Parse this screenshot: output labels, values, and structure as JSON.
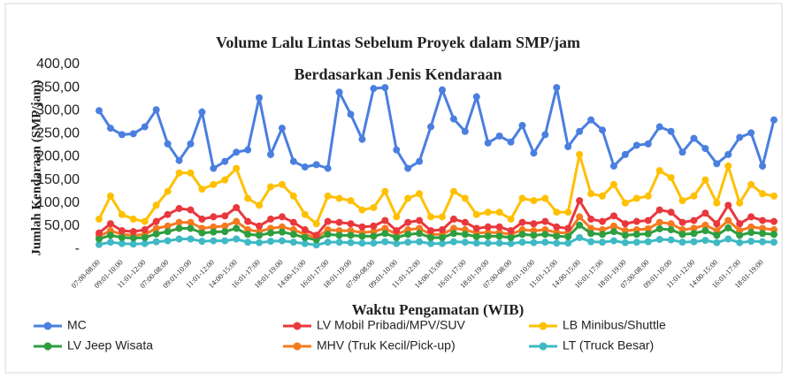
{
  "chart_data": {
    "type": "line",
    "title": "Volume Lalu Lintas Sebelum Proyek dalam SMP/jam",
    "subtitle": "Berdasarkan Jenis Kendaraan",
    "x_label": "Waktu Pengamatan (WIB)",
    "y_label": "Jumlah Kendaraan (SMP/jam)",
    "categories": [
      "07:00-08:00",
      null,
      "09:01-10:00",
      null,
      "11:01-12:00",
      null,
      "07:00-08:00",
      null,
      "09:01-10:00",
      null,
      "11:01-12:00",
      null,
      "14:00-15:00",
      null,
      "16:01-17:00",
      null,
      "18:01-19:00",
      null,
      "14:00-15:00",
      null,
      "16:01-17:00",
      null,
      "18:01-19:00",
      null,
      "07:00-08:00",
      null,
      "09:01-10:00",
      null,
      "11:01-12:00",
      null,
      "14:00-15:00",
      null,
      "16:01-17:00",
      null,
      "18:01-19:00",
      null,
      "07:00-08:00",
      null,
      "09:01-10:00",
      null,
      "11:01-12:00",
      null,
      "14:00-15:00",
      null,
      "16:01-17:00",
      null,
      "18:01-19:00",
      null,
      "07:00-08:00",
      null,
      "09:01-10:00",
      null,
      "11:01-12:00",
      null,
      "14:00-15:00",
      null,
      "16:01-17:00",
      null,
      "18:01-19:00",
      null
    ],
    "series": [
      {
        "name": "MC",
        "color": "#4a7fe0",
        "values": [
          300,
          262,
          248,
          250,
          265,
          302,
          228,
          192,
          228,
          297,
          175,
          190,
          210,
          215,
          328,
          205,
          262,
          190,
          178,
          183,
          175,
          340,
          292,
          238,
          348,
          350,
          215,
          175,
          190,
          265,
          345,
          282,
          255,
          330,
          230,
          245,
          232,
          268,
          208,
          248,
          350,
          222,
          255,
          280,
          258,
          180,
          205,
          225,
          228,
          265,
          255,
          210,
          240,
          218,
          185,
          205,
          242,
          252,
          180,
          280
        ]
      },
      {
        "name": "LV Mobil Pribadi/MPV/SUV",
        "color": "#e8383d",
        "values": [
          35,
          55,
          40,
          38,
          42,
          60,
          75,
          88,
          85,
          65,
          70,
          72,
          90,
          60,
          50,
          65,
          70,
          58,
          42,
          30,
          60,
          58,
          55,
          48,
          50,
          62,
          40,
          58,
          62,
          40,
          42,
          65,
          58,
          45,
          48,
          48,
          40,
          58,
          55,
          60,
          48,
          45,
          105,
          65,
          60,
          72,
          55,
          60,
          62,
          85,
          80,
          58,
          62,
          78,
          55,
          95,
          55,
          70,
          62,
          60
        ]
      },
      {
        "name": "LB Minibus/Shuttle",
        "color": "#ffc000",
        "values": [
          65,
          115,
          75,
          65,
          60,
          95,
          125,
          165,
          165,
          130,
          140,
          150,
          175,
          110,
          95,
          135,
          140,
          115,
          75,
          55,
          115,
          110,
          105,
          85,
          90,
          125,
          70,
          110,
          120,
          70,
          70,
          125,
          110,
          75,
          80,
          80,
          65,
          110,
          105,
          110,
          80,
          80,
          205,
          120,
          115,
          140,
          100,
          110,
          115,
          170,
          155,
          105,
          115,
          150,
          100,
          180,
          100,
          140,
          120,
          115
        ]
      },
      {
        "name": "LV Jeep Wisata",
        "color": "#2e9e3f",
        "values": [
          22,
          30,
          25,
          24,
          25,
          33,
          38,
          45,
          45,
          35,
          37,
          38,
          45,
          32,
          30,
          35,
          37,
          32,
          25,
          20,
          32,
          30,
          30,
          28,
          28,
          34,
          25,
          32,
          34,
          25,
          25,
          34,
          32,
          27,
          28,
          28,
          25,
          32,
          30,
          32,
          28,
          27,
          52,
          34,
          32,
          38,
          30,
          32,
          33,
          44,
          42,
          32,
          34,
          40,
          30,
          46,
          30,
          36,
          34,
          32
        ]
      },
      {
        "name": "MHV (Truk Kecil/Pick-up)",
        "color": "#f47a20",
        "values": [
          28,
          40,
          32,
          30,
          32,
          45,
          50,
          58,
          58,
          45,
          48,
          50,
          60,
          42,
          38,
          45,
          48,
          42,
          32,
          25,
          42,
          40,
          40,
          36,
          38,
          45,
          32,
          42,
          45,
          32,
          32,
          45,
          42,
          35,
          36,
          36,
          32,
          42,
          40,
          42,
          36,
          35,
          70,
          45,
          42,
          50,
          40,
          42,
          44,
          58,
          55,
          42,
          45,
          52,
          40,
          62,
          40,
          48,
          45,
          42
        ]
      },
      {
        "name": "LT (Truck Besar)",
        "color": "#3fb9c4",
        "values": [
          10,
          15,
          12,
          11,
          12,
          16,
          18,
          22,
          22,
          17,
          18,
          18,
          22,
          15,
          14,
          17,
          18,
          15,
          12,
          9,
          15,
          15,
          14,
          13,
          13,
          16,
          12,
          15,
          16,
          12,
          12,
          16,
          15,
          13,
          13,
          13,
          12,
          15,
          14,
          15,
          13,
          13,
          25,
          16,
          15,
          18,
          14,
          15,
          16,
          21,
          20,
          15,
          16,
          19,
          14,
          22,
          14,
          17,
          16,
          15
        ]
      }
    ],
    "ylim": [
      0,
      400
    ],
    "yticks": [
      {
        "value": 0,
        "label": "-"
      },
      {
        "value": 50,
        "label": "50,00"
      },
      {
        "value": 100,
        "label": "100,00"
      },
      {
        "value": 150,
        "label": "150,00"
      },
      {
        "value": 200,
        "label": "200,00"
      },
      {
        "value": 250,
        "label": "250,00"
      },
      {
        "value": 300,
        "label": "300,00"
      },
      {
        "value": 350,
        "label": "350,00"
      },
      {
        "value": {
          "value": 400
        },
        "label": "400,00"
      }
    ],
    "grid": false,
    "legend": "bottom"
  }
}
